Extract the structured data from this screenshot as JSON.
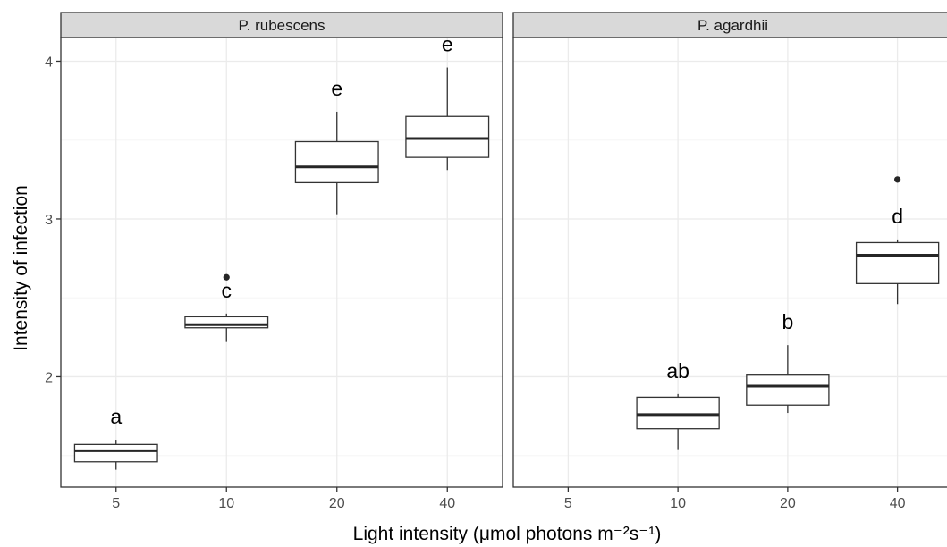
{
  "chart_data": {
    "type": "boxplot",
    "xlabel": "Light intensity (μmol photons m⁻²s⁻¹)",
    "ylabel": "Intensity of infection",
    "categories": [
      "5",
      "10",
      "20",
      "40"
    ],
    "ylim": [
      1.3,
      4.15
    ],
    "yticks": [
      "2",
      "3",
      "4"
    ],
    "grid": true,
    "legend": "none",
    "panels": [
      {
        "strip_label": "P. rubescens",
        "boxes": [
          {
            "x": "5",
            "whisker_low": 1.41,
            "q1": 1.46,
            "median": 1.53,
            "q3": 1.57,
            "whisker_high": 1.6,
            "outliers": [],
            "letter": "a"
          },
          {
            "x": "10",
            "whisker_low": 2.22,
            "q1": 2.31,
            "median": 2.33,
            "q3": 2.38,
            "whisker_high": 2.4,
            "outliers": [
              2.63
            ],
            "letter": "c"
          },
          {
            "x": "20",
            "whisker_low": 3.03,
            "q1": 3.23,
            "median": 3.33,
            "q3": 3.49,
            "whisker_high": 3.68,
            "outliers": [],
            "letter": "e"
          },
          {
            "x": "40",
            "whisker_low": 3.31,
            "q1": 3.39,
            "median": 3.51,
            "q3": 3.65,
            "whisker_high": 3.96,
            "outliers": [],
            "letter": "e"
          }
        ]
      },
      {
        "strip_label": "P. agardhii",
        "boxes": [
          {
            "x": "10",
            "whisker_low": 1.54,
            "q1": 1.67,
            "median": 1.76,
            "q3": 1.87,
            "whisker_high": 1.89,
            "outliers": [],
            "letter": "ab"
          },
          {
            "x": "20",
            "whisker_low": 1.77,
            "q1": 1.82,
            "median": 1.94,
            "q3": 2.01,
            "whisker_high": 2.2,
            "outliers": [],
            "letter": "b"
          },
          {
            "x": "40",
            "whisker_low": 2.46,
            "q1": 2.59,
            "median": 2.77,
            "q3": 2.85,
            "whisker_high": 2.87,
            "outliers": [
              3.25
            ],
            "letter": "d"
          }
        ]
      }
    ]
  },
  "colors": {
    "strip_fill": "#d9d9d9",
    "panel_border": "#333333",
    "grid_major": "#ebebeb",
    "grid_minor": "#f5f5f5",
    "box_line": "#333333",
    "median_line": "#262626",
    "outlier": "#262626",
    "tick": "#333333"
  }
}
